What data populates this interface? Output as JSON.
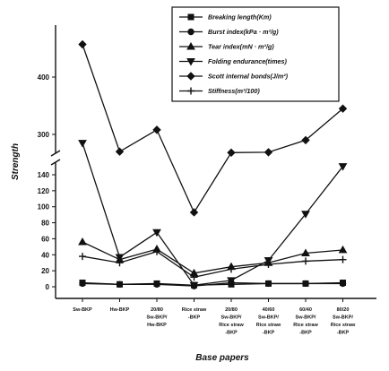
{
  "chart_data": {
    "type": "line",
    "xlabel": "Base papers",
    "ylabel": "Strength",
    "categories": [
      [
        "Sw-BKP"
      ],
      [
        "Hw-BKP"
      ],
      [
        "20/80",
        "Sw-BKP/",
        "Hw-BKP"
      ],
      [
        "Rice straw",
        "-BKP"
      ],
      [
        "20/80",
        "Sw-BKP/",
        "Rice straw",
        "-BKP"
      ],
      [
        "40/60",
        "Sw-BKP/",
        "Rice straw",
        "-BKP"
      ],
      [
        "60/40",
        "Sw-BKP/",
        "Rice straw",
        "-BKP"
      ],
      [
        "80/20",
        "Sw-BKP/",
        "Rice straw",
        "-BKP"
      ]
    ],
    "y_ticks_lower": [
      "0",
      "20",
      "40",
      "60",
      "80",
      "100",
      "120",
      "140"
    ],
    "y_ticks_upper": [
      "300",
      "400"
    ],
    "y_axis_break": [
      150,
      270
    ],
    "ylim": [
      -5,
      440
    ],
    "legend_position": "top-right",
    "grid": false,
    "series": [
      {
        "name": "Breaking length(Km)",
        "marker": "square",
        "values": [
          5,
          3,
          4,
          2,
          3,
          4,
          4,
          5
        ]
      },
      {
        "name": "Burst index(kPa · m²/g)",
        "marker": "circle",
        "values": [
          4,
          3,
          3,
          1,
          5,
          4,
          4,
          4
        ]
      },
      {
        "name": "Tear index(mN · m²/g)",
        "marker": "triangle-up",
        "values": [
          56,
          34,
          47,
          17,
          25,
          30,
          42,
          46
        ]
      },
      {
        "name": "Folding endurance(times)",
        "marker": "triangle-down",
        "values": [
          285,
          37,
          68,
          2,
          8,
          33,
          91,
          153
        ]
      },
      {
        "name": "Scott internal bonds(J/m²)",
        "marker": "diamond",
        "values": [
          457,
          270,
          308,
          93,
          262,
          265,
          290,
          345
        ]
      },
      {
        "name": "Stiffness(m³/100)",
        "marker": "plus",
        "values": [
          38,
          30,
          44,
          12,
          22,
          28,
          32,
          34
        ]
      }
    ]
  }
}
